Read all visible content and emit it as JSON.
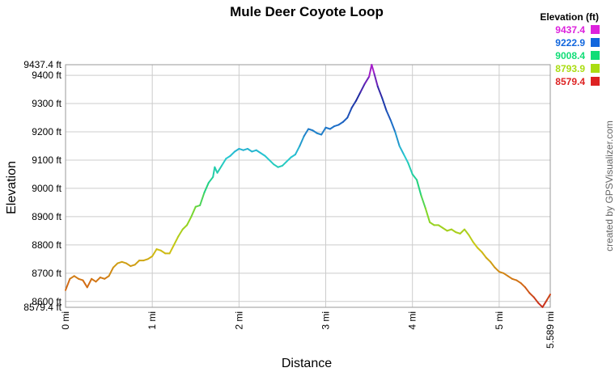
{
  "chart_data": {
    "type": "line",
    "title": "Mule Deer  Coyote Loop",
    "xlabel": "Distance",
    "ylabel": "Elevation",
    "xlim": [
      0,
      5.589
    ],
    "ylim": [
      8579.4,
      9437.4
    ],
    "grid": true,
    "x_ticks": [
      {
        "value": 0,
        "label": "0 mi"
      },
      {
        "value": 1,
        "label": "1 mi"
      },
      {
        "value": 2,
        "label": "2 mi"
      },
      {
        "value": 3,
        "label": "3 mi"
      },
      {
        "value": 4,
        "label": "4 mi"
      },
      {
        "value": 5,
        "label": "5 mi"
      },
      {
        "value": 5.589,
        "label": "5.589 mi"
      }
    ],
    "y_ticks": [
      {
        "value": 8579.4,
        "label": "8579.4 ft"
      },
      {
        "value": 8600,
        "label": "8600 ft"
      },
      {
        "value": 8700,
        "label": "8700 ft"
      },
      {
        "value": 8800,
        "label": "8800 ft"
      },
      {
        "value": 8900,
        "label": "8900 ft"
      },
      {
        "value": 9000,
        "label": "9000 ft"
      },
      {
        "value": 9100,
        "label": "9100 ft"
      },
      {
        "value": 9200,
        "label": "9200 ft"
      },
      {
        "value": 9300,
        "label": "9300 ft"
      },
      {
        "value": 9400,
        "label": "9400 ft"
      },
      {
        "value": 9437.4,
        "label": "9437.4 ft"
      }
    ],
    "legend": {
      "title": "Elevation (ft)",
      "placement": "top-right",
      "entries": [
        {
          "label": "9437.4",
          "color": "#dd22dd"
        },
        {
          "label": "9222.9",
          "color": "#1166dd"
        },
        {
          "label": "9008.4",
          "color": "#11dd77"
        },
        {
          "label": "8793.9",
          "color": "#aadd11"
        },
        {
          "label": "8579.4",
          "color": "#dd2222"
        }
      ]
    },
    "series": [
      {
        "values": [
          [
            0.0,
            8640
          ],
          [
            0.05,
            8680
          ],
          [
            0.1,
            8690
          ],
          [
            0.15,
            8680
          ],
          [
            0.2,
            8675
          ],
          [
            0.25,
            8650
          ],
          [
            0.3,
            8680
          ],
          [
            0.35,
            8670
          ],
          [
            0.4,
            8685
          ],
          [
            0.45,
            8680
          ],
          [
            0.5,
            8690
          ],
          [
            0.55,
            8720
          ],
          [
            0.6,
            8735
          ],
          [
            0.65,
            8740
          ],
          [
            0.7,
            8735
          ],
          [
            0.75,
            8725
          ],
          [
            0.8,
            8730
          ],
          [
            0.85,
            8745
          ],
          [
            0.9,
            8745
          ],
          [
            0.95,
            8750
          ],
          [
            1.0,
            8760
          ],
          [
            1.05,
            8785
          ],
          [
            1.1,
            8780
          ],
          [
            1.15,
            8770
          ],
          [
            1.2,
            8770
          ],
          [
            1.25,
            8800
          ],
          [
            1.3,
            8830
          ],
          [
            1.35,
            8855
          ],
          [
            1.4,
            8870
          ],
          [
            1.45,
            8900
          ],
          [
            1.5,
            8935
          ],
          [
            1.55,
            8940
          ],
          [
            1.6,
            8985
          ],
          [
            1.65,
            9020
          ],
          [
            1.7,
            9040
          ],
          [
            1.72,
            9075
          ],
          [
            1.75,
            9055
          ],
          [
            1.8,
            9080
          ],
          [
            1.85,
            9105
          ],
          [
            1.9,
            9115
          ],
          [
            1.95,
            9130
          ],
          [
            2.0,
            9140
          ],
          [
            2.05,
            9135
          ],
          [
            2.1,
            9140
          ],
          [
            2.15,
            9130
          ],
          [
            2.2,
            9135
          ],
          [
            2.25,
            9125
          ],
          [
            2.3,
            9115
          ],
          [
            2.35,
            9100
          ],
          [
            2.4,
            9085
          ],
          [
            2.45,
            9075
          ],
          [
            2.5,
            9080
          ],
          [
            2.55,
            9095
          ],
          [
            2.6,
            9110
          ],
          [
            2.65,
            9120
          ],
          [
            2.7,
            9150
          ],
          [
            2.75,
            9185
          ],
          [
            2.8,
            9210
          ],
          [
            2.85,
            9205
          ],
          [
            2.9,
            9195
          ],
          [
            2.95,
            9190
          ],
          [
            3.0,
            9215
          ],
          [
            3.05,
            9210
          ],
          [
            3.1,
            9220
          ],
          [
            3.15,
            9225
          ],
          [
            3.2,
            9235
          ],
          [
            3.25,
            9250
          ],
          [
            3.3,
            9285
          ],
          [
            3.35,
            9310
          ],
          [
            3.4,
            9340
          ],
          [
            3.45,
            9370
          ],
          [
            3.5,
            9395
          ],
          [
            3.53,
            9437.4
          ],
          [
            3.56,
            9405
          ],
          [
            3.6,
            9360
          ],
          [
            3.65,
            9320
          ],
          [
            3.7,
            9275
          ],
          [
            3.75,
            9240
          ],
          [
            3.8,
            9200
          ],
          [
            3.85,
            9150
          ],
          [
            3.9,
            9120
          ],
          [
            3.95,
            9090
          ],
          [
            4.0,
            9050
          ],
          [
            4.05,
            9030
          ],
          [
            4.1,
            8975
          ],
          [
            4.15,
            8930
          ],
          [
            4.2,
            8880
          ],
          [
            4.25,
            8870
          ],
          [
            4.3,
            8870
          ],
          [
            4.35,
            8860
          ],
          [
            4.4,
            8850
          ],
          [
            4.45,
            8855
          ],
          [
            4.5,
            8845
          ],
          [
            4.55,
            8840
          ],
          [
            4.6,
            8855
          ],
          [
            4.65,
            8835
          ],
          [
            4.7,
            8810
          ],
          [
            4.75,
            8790
          ],
          [
            4.8,
            8775
          ],
          [
            4.85,
            8755
          ],
          [
            4.9,
            8740
          ],
          [
            4.95,
            8720
          ],
          [
            5.0,
            8705
          ],
          [
            5.05,
            8700
          ],
          [
            5.1,
            8690
          ],
          [
            5.15,
            8680
          ],
          [
            5.2,
            8675
          ],
          [
            5.25,
            8665
          ],
          [
            5.3,
            8650
          ],
          [
            5.35,
            8630
          ],
          [
            5.4,
            8615
          ],
          [
            5.45,
            8595
          ],
          [
            5.5,
            8580
          ],
          [
            5.55,
            8605
          ],
          [
            5.589,
            8625
          ]
        ]
      }
    ]
  },
  "credit": "created by GPSVisualizer.com"
}
